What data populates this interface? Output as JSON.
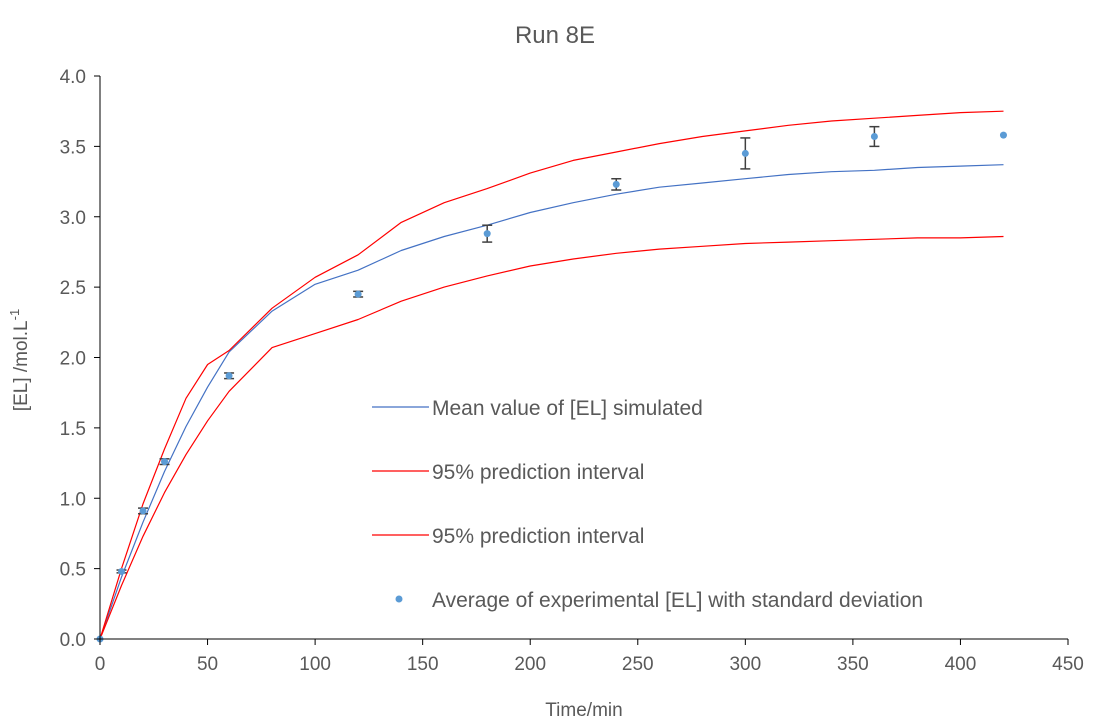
{
  "chart_data": {
    "type": "scatter",
    "title": "Run 8E",
    "xlabel": "Time/min",
    "ylabel": "[EL] /mol.L",
    "ylabel_sup": "-1",
    "xlim": [
      0,
      450
    ],
    "ylim": [
      0,
      4.0
    ],
    "xticks": [
      "0",
      "50",
      "100",
      "150",
      "200",
      "250",
      "300",
      "350",
      "400",
      "450"
    ],
    "yticks": [
      "0.0",
      "0.5",
      "1.0",
      "1.5",
      "2.0",
      "2.5",
      "3.0",
      "3.5",
      "4.0"
    ],
    "grid": false,
    "legend_position": "center-right",
    "series": [
      {
        "name": "Mean value of [EL] simulated",
        "kind": "line",
        "color": "#4472C4",
        "x": [
          0,
          10,
          20,
          30,
          40,
          50,
          60,
          80,
          100,
          120,
          140,
          160,
          180,
          200,
          220,
          240,
          260,
          280,
          300,
          320,
          340,
          360,
          380,
          400,
          420
        ],
        "y": [
          0,
          0.44,
          0.83,
          1.19,
          1.51,
          1.79,
          2.04,
          2.33,
          2.52,
          2.62,
          2.76,
          2.86,
          2.94,
          3.03,
          3.1,
          3.16,
          3.21,
          3.24,
          3.27,
          3.3,
          3.32,
          3.33,
          3.35,
          3.36,
          3.37
        ]
      },
      {
        "name": "95% prediction interval",
        "kind": "line",
        "color": "#FF0000",
        "x": [
          0,
          10,
          20,
          30,
          40,
          50,
          60,
          80,
          100,
          120,
          140,
          160,
          180,
          200,
          220,
          240,
          260,
          280,
          300,
          320,
          340,
          360,
          380,
          400,
          420
        ],
        "y": [
          0,
          0.5,
          0.96,
          1.35,
          1.71,
          1.95,
          2.05,
          2.35,
          2.57,
          2.73,
          2.96,
          3.1,
          3.2,
          3.31,
          3.4,
          3.46,
          3.52,
          3.57,
          3.61,
          3.65,
          3.68,
          3.7,
          3.72,
          3.74,
          3.75
        ]
      },
      {
        "name": "95% prediction interval",
        "kind": "line",
        "color": "#FF0000",
        "x": [
          0,
          10,
          20,
          30,
          40,
          50,
          60,
          80,
          100,
          120,
          140,
          160,
          180,
          200,
          220,
          240,
          260,
          280,
          300,
          320,
          340,
          360,
          380,
          400,
          420
        ],
        "y": [
          0,
          0.38,
          0.73,
          1.04,
          1.31,
          1.55,
          1.76,
          2.07,
          2.17,
          2.27,
          2.4,
          2.5,
          2.58,
          2.65,
          2.7,
          2.74,
          2.77,
          2.79,
          2.81,
          2.82,
          2.83,
          2.84,
          2.85,
          2.85,
          2.86
        ]
      },
      {
        "name": "Average of experimental [EL] with standard deviation",
        "kind": "scatter",
        "color": "#5B9BD5",
        "x": [
          0,
          10,
          20,
          30,
          60,
          120,
          180,
          240,
          300,
          360,
          420
        ],
        "y": [
          0.0,
          0.48,
          0.91,
          1.26,
          1.87,
          2.45,
          2.88,
          3.23,
          3.45,
          3.57,
          3.58
        ],
        "error": [
          0.0,
          0.01,
          0.02,
          0.02,
          0.02,
          0.02,
          0.06,
          0.04,
          0.11,
          0.07,
          0.0
        ]
      }
    ]
  }
}
